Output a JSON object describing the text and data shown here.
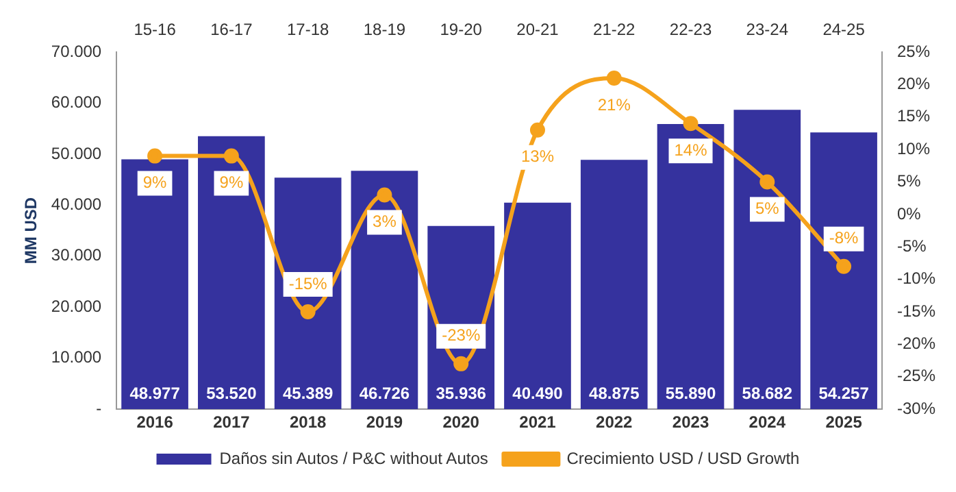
{
  "chart_data": {
    "type": "bar",
    "categories": [
      "2016",
      "2017",
      "2018",
      "2019",
      "2020",
      "2021",
      "2022",
      "2023",
      "2024",
      "2025"
    ],
    "ylabel": "MM USD",
    "ylim": [
      0,
      70000
    ],
    "yticks": [
      {
        "value": 0,
        "label": "-"
      },
      {
        "value": 10000,
        "label": "10.000"
      },
      {
        "value": 20000,
        "label": "20.000"
      },
      {
        "value": 30000,
        "label": "30.000"
      },
      {
        "value": 40000,
        "label": "40.000"
      },
      {
        "value": 50000,
        "label": "50.000"
      },
      {
        "value": 60000,
        "label": "60.000"
      },
      {
        "value": 70000,
        "label": "70.000"
      }
    ],
    "y2lim": [
      -30,
      25
    ],
    "y2ticks": [
      {
        "value": -30,
        "label": "-30%"
      },
      {
        "value": -25,
        "label": "-25%"
      },
      {
        "value": -20,
        "label": "-20%"
      },
      {
        "value": -15,
        "label": "-15%"
      },
      {
        "value": -10,
        "label": "-10%"
      },
      {
        "value": -5,
        "label": "-5%"
      },
      {
        "value": 0,
        "label": "0%"
      },
      {
        "value": 5,
        "label": "5%"
      },
      {
        "value": 10,
        "label": "10%"
      },
      {
        "value": 15,
        "label": "15%"
      },
      {
        "value": 20,
        "label": "20%"
      },
      {
        "value": 25,
        "label": "25%"
      }
    ],
    "annotations": [
      "15-16",
      "16-17",
      "17-18",
      "18-19",
      "19-20",
      "20-21",
      "21-22",
      "22-23",
      "23-24",
      "24-25"
    ],
    "grid": false,
    "legend": "bottom",
    "marker": "circle",
    "series": [
      {
        "name": "Daños sin Autos / P&C without Autos",
        "color": "#35329e",
        "values": [
          48977,
          53520,
          45389,
          46726,
          35936,
          40490,
          48875,
          55890,
          58682,
          54257
        ],
        "value_labels": [
          "48.977",
          "53.520",
          "45.389",
          "46.726",
          "35.936",
          "40.490",
          "48.875",
          "55.890",
          "58.682",
          "54.257"
        ]
      },
      {
        "name": "Crecimiento USD / USD Growth",
        "type": "line",
        "axis": "y2",
        "color": "#f5a21c",
        "values": [
          9,
          9,
          -15,
          3,
          -23,
          13,
          21,
          14,
          5,
          -8
        ],
        "value_labels": [
          "9%",
          "9%",
          "-15%",
          "3%",
          "-23%",
          "13%",
          "21%",
          "14%",
          "5%",
          "-8%"
        ]
      }
    ]
  }
}
